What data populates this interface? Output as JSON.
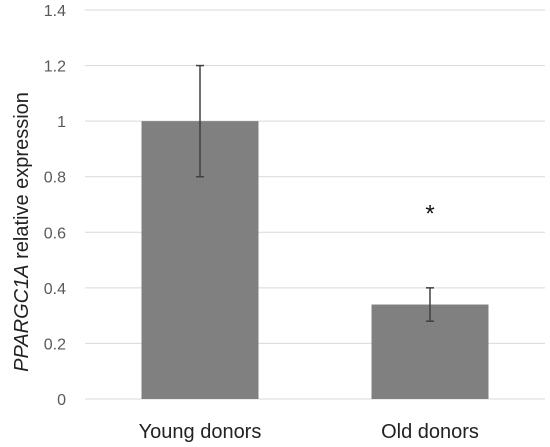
{
  "chart_data": {
    "type": "bar",
    "categories": [
      "Young donors",
      "Old donors"
    ],
    "values": [
      1.0,
      0.34
    ],
    "error": [
      0.2,
      0.06
    ],
    "ylabel_italic": "PPARGC1A",
    "ylabel_rest": " relative expression",
    "ylim": [
      0,
      1.4
    ],
    "yticks": [
      "0",
      "0.2",
      "0.4",
      "0.6",
      "0.8",
      "1",
      "1.2",
      "1.4"
    ],
    "grid": true,
    "annotations": [
      {
        "category": "Old donors",
        "text": "*",
        "y": 0.69
      }
    ],
    "bar_color": "#808080"
  }
}
